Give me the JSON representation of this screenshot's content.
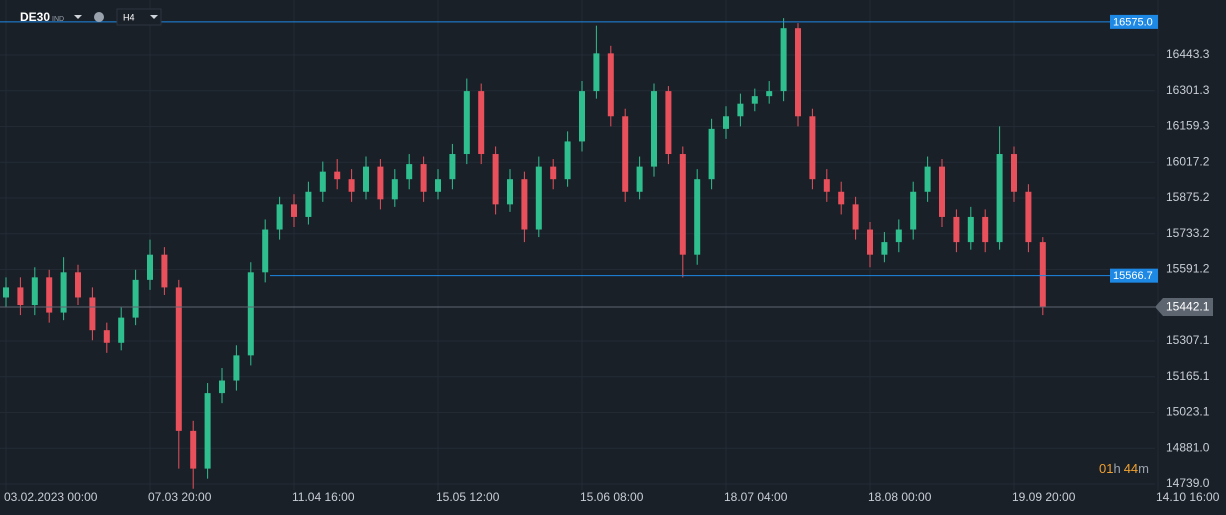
{
  "symbol": "DE30",
  "symbol_tag": "IND",
  "timeframe": "H4",
  "countdown": {
    "hours": "01",
    "hours_unit": "h",
    "minutes": "44",
    "minutes_unit": "m"
  },
  "chart_data": {
    "type": "candlestick",
    "up_color": "#2fbf8f",
    "down_color": "#e8505b",
    "categories": [
      "03.02.2023  00:00",
      null,
      null,
      null,
      null,
      null,
      null,
      null,
      null,
      null,
      "07.03  20:00",
      null,
      null,
      null,
      null,
      null,
      null,
      null,
      null,
      null,
      "11.04  16:00",
      null,
      null,
      null,
      null,
      null,
      null,
      null,
      null,
      null,
      "15.05  12:00",
      null,
      null,
      null,
      null,
      null,
      null,
      null,
      null,
      null,
      "15.06  08:00",
      null,
      null,
      null,
      null,
      null,
      null,
      null,
      null,
      null,
      "18.07  04:00",
      null,
      null,
      null,
      null,
      null,
      null,
      null,
      null,
      null,
      "18.08  00:00",
      null,
      null,
      null,
      null,
      null,
      null,
      null,
      null,
      null,
      "19.09  20:00",
      null,
      null,
      null,
      null,
      null,
      null,
      null,
      null,
      null,
      "14.10  16:00"
    ],
    "open": [
      15480,
      15520,
      15450,
      15560,
      15420,
      15580,
      15480,
      15350,
      15300,
      15400,
      15550,
      15650,
      15520,
      14950,
      14800,
      15100,
      15150,
      15250,
      15580,
      15750,
      15850,
      15800,
      15900,
      15980,
      15950,
      15900,
      16000,
      15870,
      15950,
      16010,
      15900,
      15950,
      16050,
      16300,
      16050,
      15850,
      15950,
      15750,
      16000,
      15950,
      16100,
      16300,
      16450,
      16200,
      15900,
      16000,
      16300,
      16050,
      15650,
      15950,
      16150,
      16200,
      16250,
      16280,
      16300,
      16550,
      16200,
      15950,
      15900,
      15850,
      15750,
      15650,
      15700,
      15750,
      15900,
      16000,
      15800,
      15700,
      15800,
      15700,
      16050,
      15900,
      15700,
      null,
      null,
      null,
      null,
      null,
      null,
      null,
      null
    ],
    "high": [
      15560,
      15560,
      15600,
      15590,
      15640,
      15610,
      15520,
      15380,
      15440,
      15590,
      15710,
      15680,
      15550,
      14990,
      15140,
      15200,
      15290,
      15620,
      15790,
      15880,
      15890,
      15940,
      16020,
      16030,
      15990,
      16040,
      16030,
      15990,
      16050,
      16040,
      15990,
      16090,
      16350,
      16330,
      16080,
      15990,
      15980,
      16040,
      16030,
      16140,
      16340,
      16560,
      16480,
      16230,
      16040,
      16330,
      16320,
      16080,
      15990,
      16190,
      16240,
      16290,
      16310,
      16340,
      16590,
      16570,
      16230,
      15990,
      15940,
      15880,
      15780,
      15740,
      15790,
      15940,
      16040,
      16030,
      15830,
      15840,
      15830,
      16160,
      16080,
      15930,
      15720,
      null,
      null,
      null,
      null,
      null,
      null,
      null,
      null
    ],
    "low": [
      15440,
      15410,
      15410,
      15380,
      15390,
      15450,
      15310,
      15260,
      15270,
      15370,
      15510,
      15490,
      14800,
      14720,
      14760,
      15060,
      15110,
      15210,
      15540,
      15710,
      15760,
      15770,
      15860,
      15910,
      15860,
      15870,
      15830,
      15840,
      15910,
      15860,
      15870,
      15910,
      16010,
      16010,
      15810,
      15820,
      15700,
      15720,
      15910,
      15920,
      16060,
      16270,
      16160,
      15860,
      15870,
      15960,
      16010,
      15560,
      15610,
      15910,
      16110,
      16160,
      16220,
      16250,
      16260,
      16160,
      15910,
      15860,
      15810,
      15710,
      15600,
      15620,
      15660,
      15710,
      15860,
      15760,
      15660,
      15670,
      15660,
      15670,
      15860,
      15660,
      15410,
      null,
      null,
      null,
      null,
      null,
      null,
      null,
      null
    ],
    "close": [
      15520,
      15450,
      15560,
      15420,
      15580,
      15480,
      15350,
      15300,
      15400,
      15550,
      15650,
      15520,
      14950,
      14800,
      15100,
      15150,
      15250,
      15580,
      15750,
      15850,
      15800,
      15900,
      15980,
      15950,
      15900,
      16000,
      15870,
      15950,
      16010,
      15900,
      15950,
      16050,
      16300,
      16050,
      15850,
      15950,
      15750,
      16000,
      15950,
      16100,
      16300,
      16450,
      16200,
      15900,
      16000,
      16300,
      16050,
      15650,
      15950,
      16150,
      16200,
      16250,
      16280,
      16300,
      16550,
      16200,
      15950,
      15900,
      15850,
      15750,
      15650,
      15700,
      15750,
      15900,
      16000,
      15800,
      15700,
      15800,
      15700,
      16050,
      15900,
      15700,
      15442.1,
      null,
      null,
      null,
      null,
      null,
      null,
      null,
      null
    ],
    "ylim": [
      14715,
      16662
    ],
    "yticks": [
      {
        "value": 14739.0,
        "label": "14739.0"
      },
      {
        "value": 14881.0,
        "label": "14881.0"
      },
      15023.1,
      15165.1,
      15307.1,
      15591.2,
      15733.2,
      15875.2,
      16017.2,
      16159.3,
      16301.3,
      16443.3
    ],
    "levels": [
      {
        "value": 16575.0,
        "label": "16575.0",
        "color": "#1e88e5"
      },
      {
        "value": 15566.7,
        "label": "15566.7",
        "color": "#1e88e5"
      }
    ],
    "current_price": {
      "value": 15442.1,
      "label": "15442.1",
      "color": "#5d6570"
    },
    "grid": true
  }
}
